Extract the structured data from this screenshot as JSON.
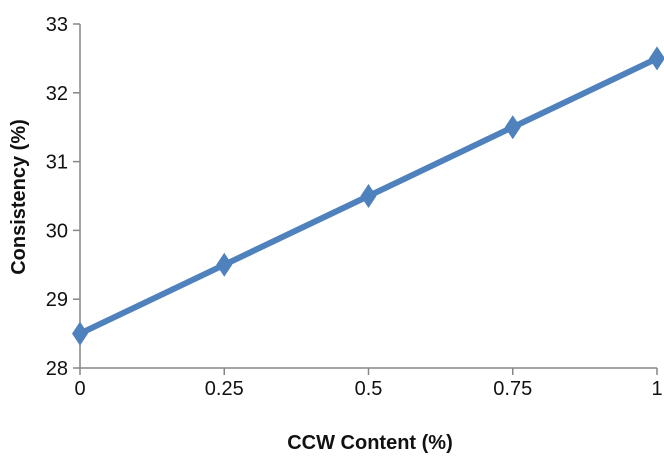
{
  "chart_data": {
    "type": "line",
    "title": "",
    "xlabel": "CCW Content (%)",
    "ylabel": "Consistency (%)",
    "x": [
      0,
      0.25,
      0.5,
      0.75,
      1
    ],
    "x_tick_labels": [
      "0",
      "0.25",
      "0.5",
      "0.75",
      "1"
    ],
    "y_tick_labels": [
      "28",
      "29",
      "30",
      "31",
      "32",
      "33"
    ],
    "xlim": [
      0,
      1
    ],
    "ylim": [
      28,
      33
    ],
    "y_ticks": [
      28,
      29,
      30,
      31,
      32,
      33
    ],
    "series": [
      {
        "values": [
          28.5,
          29.5,
          30.5,
          31.5,
          32.5
        ],
        "color": "#4f81bd",
        "marker": "diamond"
      }
    ],
    "grid": false,
    "legend": "none"
  }
}
